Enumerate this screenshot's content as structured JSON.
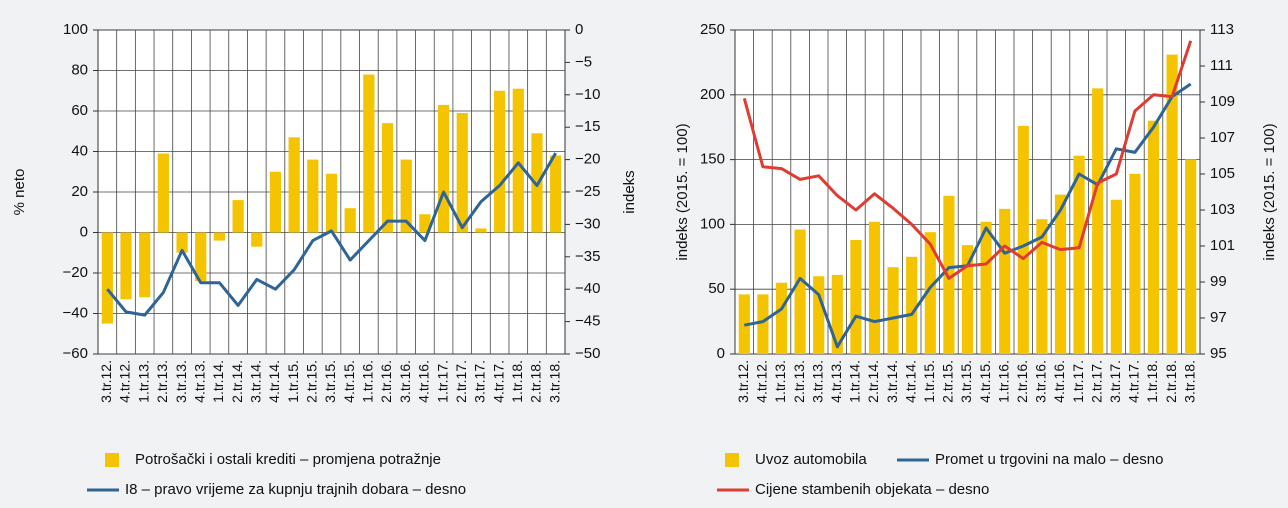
{
  "chart_data": [
    {
      "type": "combo",
      "ylabel": "% neto",
      "y2label": "indeks",
      "categories": [
        "3.tr.12.",
        "4.tr.12.",
        "1.tr.13.",
        "2.tr.13.",
        "3.tr.13.",
        "4.tr.13.",
        "1.tr.14.",
        "2.tr.14.",
        "3.tr.14.",
        "4.tr.14.",
        "1.tr.15.",
        "2.tr.15.",
        "3.tr.15.",
        "4.tr.15.",
        "1.tr.16.",
        "2.tr.16.",
        "3.tr.16.",
        "4.tr.16.",
        "1.tr.17.",
        "2.tr.17.",
        "3.tr.17.",
        "4.tr.17.",
        "1.tr.18.",
        "2.tr.18.",
        "3.tr.18."
      ],
      "ylim": [
        -60,
        100
      ],
      "yticks": [
        {
          "value": -60,
          "label": "−60"
        },
        {
          "value": -40,
          "label": "−40"
        },
        {
          "value": -20,
          "label": "−20"
        },
        0,
        20,
        40,
        60,
        80,
        100
      ],
      "y2lim": [
        -50,
        0
      ],
      "y2ticks": [
        {
          "value": -50,
          "label": "−50"
        },
        {
          "value": -45,
          "label": "−45"
        },
        {
          "value": -40,
          "label": "−40"
        },
        {
          "value": -35,
          "label": "−35"
        },
        {
          "value": -30,
          "label": "−30"
        },
        {
          "value": -25,
          "label": "−25"
        },
        {
          "value": -20,
          "label": "−20"
        },
        {
          "value": -15,
          "label": "−15"
        },
        {
          "value": -10,
          "label": "−10"
        },
        {
          "value": -5,
          "label": "−5"
        },
        0
      ],
      "grid": true,
      "series": [
        {
          "name": "Potrošački i ostali krediti – promjena potražnje",
          "type": "bar",
          "color": "#f5c400",
          "values": [
            -45,
            -33,
            -32,
            39,
            -10,
            -24,
            -4,
            16,
            -7,
            30,
            47,
            36,
            29,
            12,
            78,
            54,
            36,
            9,
            63,
            59,
            2,
            70,
            71,
            49,
            38
          ]
        },
        {
          "name": "I8 – pravo vrijeme za kupnju trajnih dobara – desno",
          "type": "line",
          "axis": "y2",
          "color": "#2e6496",
          "values": [
            -40,
            -43.5,
            -44,
            -40.5,
            -34,
            -39,
            -39,
            -42.5,
            -38.5,
            -40,
            -37,
            -32.5,
            -31,
            -35.5,
            -32.5,
            -29.5,
            -29.5,
            -32.5,
            -25,
            -30.5,
            -26.5,
            -24,
            -20.5,
            -24,
            -19
          ]
        }
      ]
    },
    {
      "type": "combo",
      "ylabel": "indeks (2015. = 100)",
      "y2label": "indeks (2015. = 100)",
      "categories": [
        "3.tr.12.",
        "4.tr.12.",
        "1.tr.13.",
        "2.tr.13.",
        "3.tr.13.",
        "4.tr.13.",
        "1.tr.14.",
        "2.tr.14.",
        "3.tr.14.",
        "4.tr.14.",
        "1.tr.15.",
        "2.tr.15.",
        "3.tr.15.",
        "4.tr.15.",
        "1.tr.16.",
        "2.tr.16.",
        "3.tr.16.",
        "4.tr.16.",
        "1.tr.17.",
        "2.tr.17.",
        "3.tr.17.",
        "4.tr.17.",
        "1.tr.18.",
        "2.tr.18.",
        "3.tr.18."
      ],
      "ylim": [
        0,
        250
      ],
      "yticks": [
        0,
        50,
        100,
        150,
        200,
        250
      ],
      "y2lim": [
        95,
        113
      ],
      "y2ticks": [
        95,
        97,
        99,
        101,
        103,
        105,
        107,
        109,
        111,
        113
      ],
      "grid": true,
      "series": [
        {
          "name": "Uvoz automobila",
          "type": "bar",
          "color": "#f5c400",
          "values": [
            46,
            46,
            55,
            96,
            60,
            61,
            88,
            102,
            67,
            75,
            94,
            122,
            84,
            102,
            112,
            176,
            104,
            123,
            153,
            205,
            119,
            139,
            180,
            231,
            150
          ]
        },
        {
          "name": "Promet u trgovini na malo – desno",
          "type": "line",
          "axis": "y2",
          "color": "#2e6496",
          "values": [
            96.6,
            96.8,
            97.5,
            99.2,
            98.3,
            95.4,
            97.1,
            96.8,
            97,
            97.2,
            98.7,
            99.8,
            99.9,
            102,
            100.6,
            101,
            101.5,
            103,
            105,
            104.4,
            106.4,
            106.2,
            107.6,
            109.3,
            110
          ]
        },
        {
          "name": "Cijene stambenih objekata – desno",
          "type": "line",
          "axis": "y2",
          "color": "#e03c31",
          "values": [
            109.2,
            105.4,
            105.3,
            104.7,
            104.9,
            103.8,
            103,
            103.9,
            103.1,
            102.2,
            101.1,
            99.2,
            99.9,
            100,
            101,
            100.3,
            101.2,
            100.8,
            100.9,
            104.5,
            105,
            108.5,
            109.4,
            109.3,
            112.4
          ]
        }
      ]
    }
  ]
}
